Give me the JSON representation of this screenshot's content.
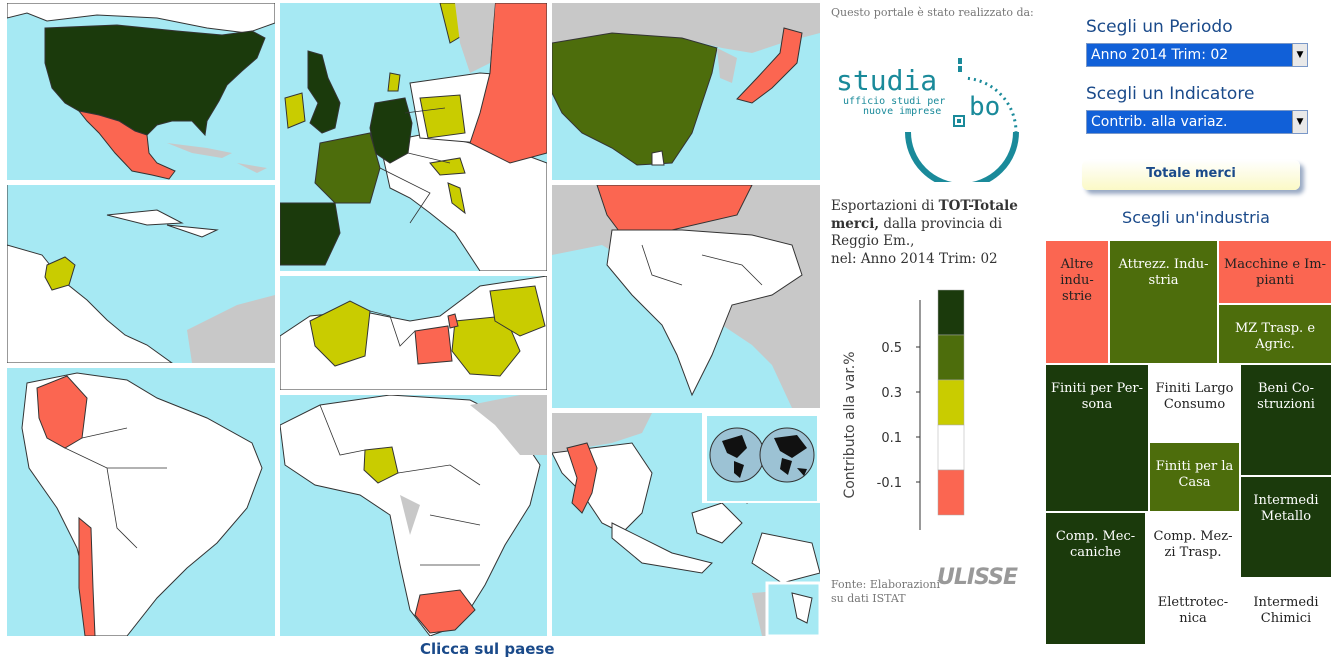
{
  "map": {
    "click_caption": "Clicca sul paese"
  },
  "credits": {
    "label": "Questo portale è stato realizzato da:",
    "logo_main": "studia",
    "logo_bo": "bo",
    "logo_sub1": "ufficio studi per",
    "logo_sub2": "nuove imprese"
  },
  "description": {
    "prefix": "Esportazioni di ",
    "product": "TOT-Totale merci,",
    "middle": " dalla provincia di Reggio Em.,",
    "period": "nel: Anno 2014 Trim: 02"
  },
  "legend": {
    "axis_label": "Contributo alla var.%",
    "ticks": [
      "0.5",
      "0.3",
      "0.1",
      "-0.1"
    ],
    "colors": [
      "#1b3a0c",
      "#4d6d0c",
      "#c9cc00",
      "#ffffff",
      "#fb6651"
    ]
  },
  "source": {
    "line1": "Fonte: Elaborazioni",
    "line2": "su dati ISTAT",
    "brand": "ULISSE"
  },
  "controls": {
    "period_label": "Scegli un Periodo",
    "period_value": "Anno 2014 Trim: 02",
    "indicator_label": "Scegli un Indicatore",
    "indicator_value": "Contrib. alla variaz.",
    "total_button": "Totale merci",
    "industry_heading": "Scegli un'industria"
  },
  "industries": [
    {
      "label": "Altre industrie",
      "text": "Altre\nindu-\nstrie",
      "color": "#fb6651"
    },
    {
      "label": "Attrezz. Industria",
      "text": "Attrezz. Indu-\nstria",
      "color": "#4d6d0c"
    },
    {
      "label": "Macchine e Impianti",
      "text": "Macchine e Im-\npianti",
      "color": "#fb6651"
    },
    {
      "label": "MZ Trasp. e Agric.",
      "text": "MZ Trasp. e\nAgric.",
      "color": "#4d6d0c"
    },
    {
      "label": "Finiti per Persona",
      "text": "Finiti per Per-\nsona",
      "color": "#1b3a0c"
    },
    {
      "label": "Finiti Largo Consumo",
      "text": "Finiti Largo\nConsumo",
      "color": "#ffffff"
    },
    {
      "label": "Beni Costruzioni",
      "text": "Beni Co-\nstruzioni",
      "color": "#1b3a0c"
    },
    {
      "label": "Finiti per la Casa",
      "text": "Finiti per la\nCasa",
      "color": "#4d6d0c"
    },
    {
      "label": "Intermedi Metallo",
      "text": "Intermedi\nMetallo",
      "color": "#1b3a0c"
    },
    {
      "label": "Comp. Meccaniche",
      "text": "Comp. Mec-\ncaniche",
      "color": "#1b3a0c"
    },
    {
      "label": "Comp. Mezzi Trasp.",
      "text": "Comp. Mez-\nzi Trasp.",
      "color": "#ffffff"
    },
    {
      "label": "Elettrotecnica",
      "text": "Elettrotec-\nnica",
      "color": "#ffffff"
    },
    {
      "label": "Intermedi Chimici",
      "text": "Intermedi\nChimici",
      "color": "#ffffff"
    }
  ]
}
